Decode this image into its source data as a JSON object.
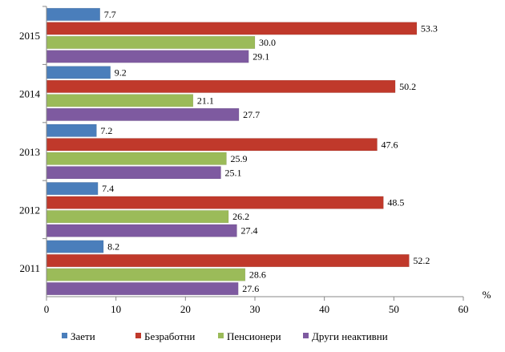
{
  "chart_data": {
    "type": "bar",
    "orientation": "horizontal",
    "categories": [
      "2015",
      "2014",
      "2013",
      "2012",
      "2011"
    ],
    "series": [
      {
        "name": "Заети",
        "color": "#4a7ebb",
        "values": [
          7.7,
          9.2,
          7.2,
          7.4,
          8.2
        ]
      },
      {
        "name": "Безработни",
        "color": "#c0392b",
        "values": [
          53.3,
          50.2,
          47.6,
          48.5,
          52.2
        ]
      },
      {
        "name": "Пенсионери",
        "color": "#9bbb59",
        "values": [
          30.0,
          21.1,
          25.9,
          26.2,
          28.6
        ]
      },
      {
        "name": "Други неактивни",
        "color": "#7e5aa0",
        "values": [
          29.1,
          27.7,
          25.1,
          27.4,
          27.6
        ]
      }
    ],
    "value_labels": [
      [
        "7.7",
        "53.3",
        "30.0",
        "29.1"
      ],
      [
        "9.2",
        "50.2",
        "21.1",
        "27.7"
      ],
      [
        "7.2",
        "47.6",
        "25.9",
        "25.1"
      ],
      [
        "7.4",
        "48.5",
        "26.2",
        "27.4"
      ],
      [
        "8.2",
        "52.2",
        "28.6",
        "27.6"
      ]
    ],
    "x_ticks": [
      "0",
      "10",
      "20",
      "30",
      "40",
      "50",
      "60"
    ],
    "xlim": [
      0,
      60
    ],
    "x_unit": "%",
    "legend_position": "bottom",
    "grid": false
  }
}
